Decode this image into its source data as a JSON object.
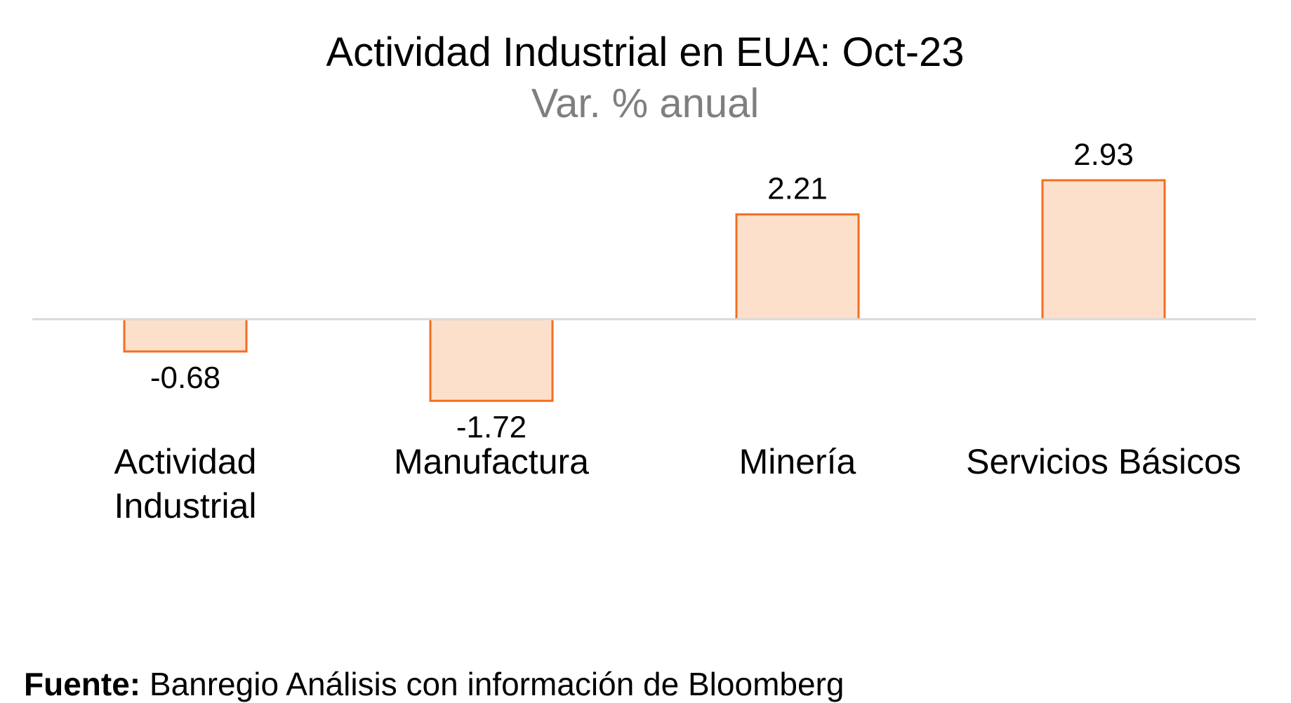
{
  "chart_data": {
    "type": "bar",
    "title": "Actividad Industrial en EUA: Oct-23",
    "subtitle": "Var. % anual",
    "categories": [
      [
        "Actividad",
        "Industrial"
      ],
      [
        "Manufactura"
      ],
      [
        "Minería"
      ],
      [
        "Servicios Básicos"
      ]
    ],
    "values": [
      -0.68,
      -1.72,
      2.21,
      2.93
    ],
    "value_labels": [
      "-0.68",
      "-1.72",
      "2.21",
      "2.93"
    ],
    "xlabel": "",
    "ylabel": "",
    "grid": false,
    "colors": {
      "bar_fill": "#fde0cc",
      "bar_stroke": "#f36e1f",
      "baseline": "#d9d9d9"
    }
  },
  "source": {
    "label": "Fuente:",
    "text": "Banregio Análisis con información de Bloomberg"
  }
}
